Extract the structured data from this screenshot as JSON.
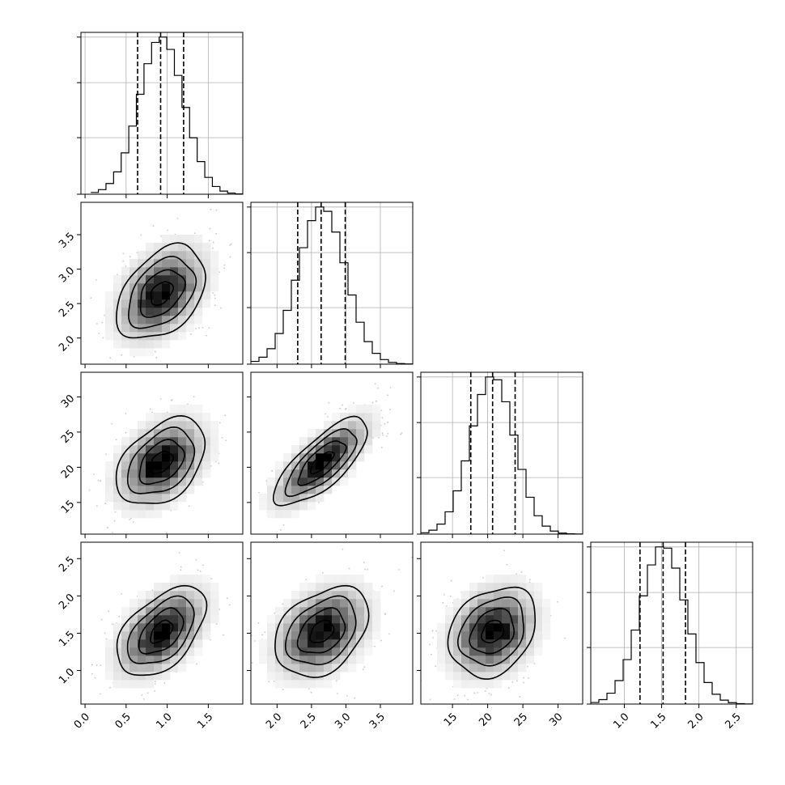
{
  "chart_data": {
    "type": "corner",
    "parameters": [
      {
        "mean": 0.93,
        "sd": 0.27,
        "range": [
          -0.05,
          1.92
        ],
        "hist_range": [
          0.07,
          1.92
        ],
        "quantiles": [
          0.64,
          0.92,
          1.2
        ],
        "ticks": [
          0.0,
          0.5,
          1.0,
          1.5
        ],
        "tick_labels": [
          "0.0",
          "0.5",
          "1.0",
          "1.5"
        ]
      },
      {
        "mean": 2.65,
        "sd": 0.34,
        "range": [
          1.62,
          3.97
        ],
        "hist_range": [
          1.62,
          3.97
        ],
        "quantiles": [
          2.3,
          2.64,
          2.99
        ],
        "ticks": [
          2.0,
          2.5,
          3.0,
          3.5
        ],
        "tick_labels": [
          "2.0",
          "2.5",
          "3.0",
          "3.5"
        ]
      },
      {
        "mean": 20.7,
        "sd": 3.1,
        "range": [
          10.5,
          33.5
        ],
        "hist_range": [
          10.5,
          33.5
        ],
        "quantiles": [
          17.6,
          20.7,
          23.9
        ],
        "ticks": [
          15,
          20,
          25,
          30
        ],
        "tick_labels": [
          "15",
          "20",
          "25",
          "30"
        ]
      },
      {
        "mean": 1.52,
        "sd": 0.3,
        "range": [
          0.55,
          2.72
        ],
        "hist_range": [
          0.55,
          2.72
        ],
        "quantiles": [
          1.21,
          1.52,
          1.82
        ],
        "ticks": [
          1.0,
          1.5,
          2.0,
          2.5
        ],
        "tick_labels": [
          "1.0",
          "1.5",
          "2.0",
          "2.5"
        ]
      }
    ],
    "correlations": [
      [
        1.0,
        0.4,
        0.4,
        0.5
      ],
      [
        0.4,
        1.0,
        0.75,
        0.35
      ],
      [
        0.4,
        0.75,
        1.0,
        0.25
      ],
      [
        0.5,
        0.35,
        0.25,
        1.0
      ]
    ],
    "histogram_bins": 20,
    "contour_levels_sigma": [
      0.5,
      1.0,
      1.5,
      2.0
    ],
    "grid": true,
    "colors": {
      "ink": "#000000",
      "grid": "#b0b0b0",
      "background": "#ffffff"
    }
  }
}
